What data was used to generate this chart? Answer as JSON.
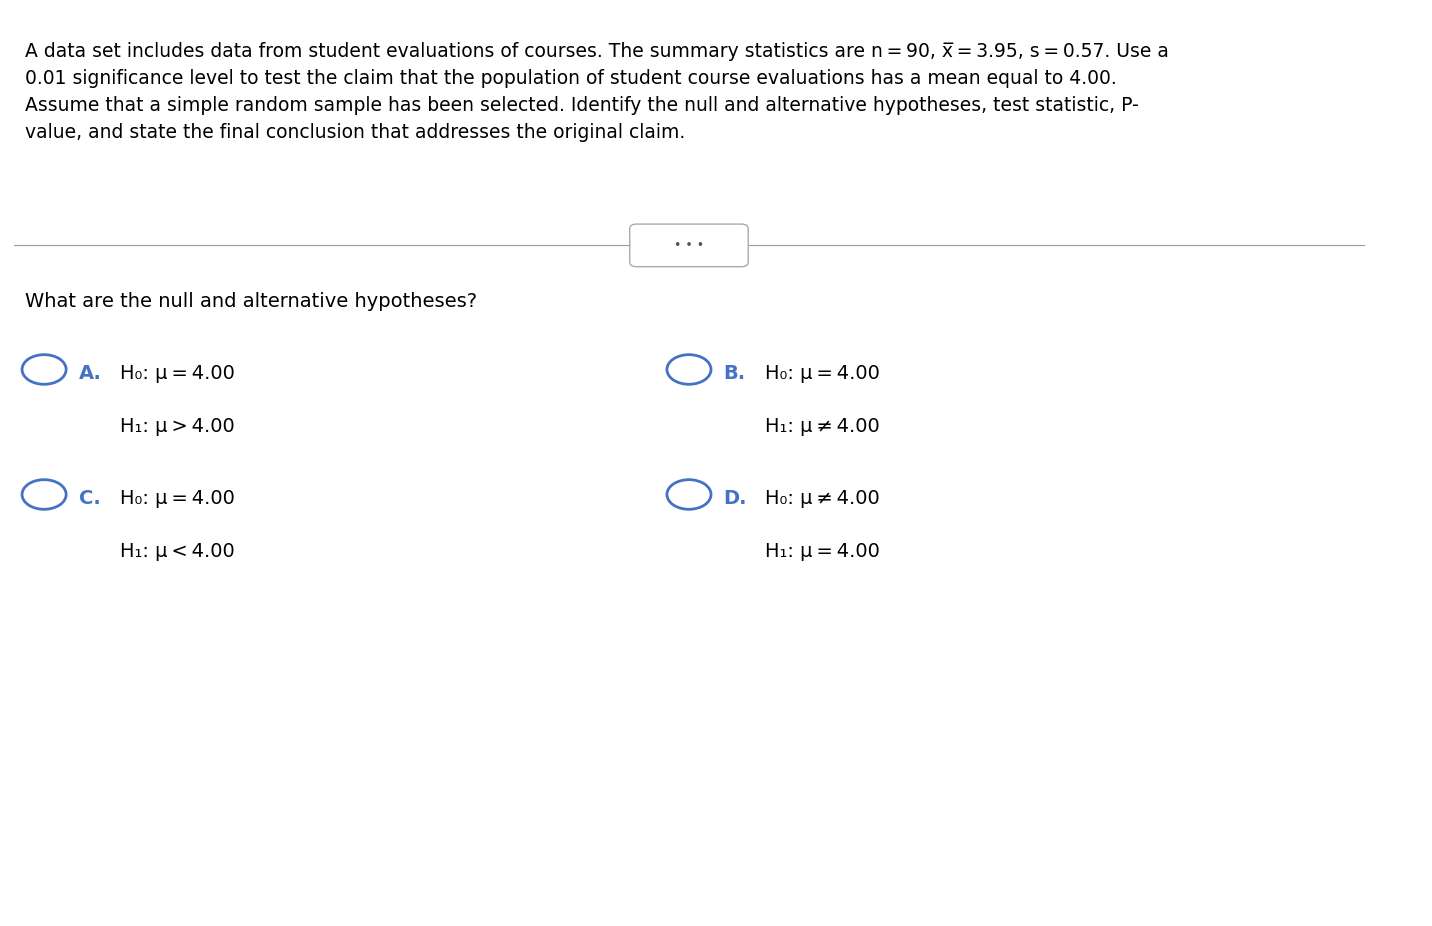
{
  "bg_color": "#ffffff",
  "text_color": "#000000",
  "blue_color": "#4472C4",
  "paragraph_text": "A data set includes data from student evaluations of courses. The summary statistics are n = 90, x̅ = 3.95, s = 0.57. Use a\n0.01 significance level to test the claim that the population of student course evaluations has a mean equal to 4.00.\nAssume that a simple random sample has been selected. Identify the null and alternative hypotheses, test statistic, P-\nvalue, and state the final conclusion that addresses the original claim.",
  "question_text": "What are the null and alternative hypotheses?",
  "option_A_label": "A.",
  "option_A_h0": "H₀: μ = 4.00",
  "option_A_h1": "H₁: μ > 4.00",
  "option_B_label": "B.",
  "option_B_h0": "H₀: μ = 4.00",
  "option_B_h1": "H₁: μ ≠ 4.00",
  "option_C_label": "C.",
  "option_C_h0": "H₀: μ = 4.00",
  "option_C_h1": "H₁: μ < 4.00",
  "option_D_label": "D.",
  "option_D_h0": "H₀: μ ≠ 4.00",
  "option_D_h1": "H₁: μ = 4.00",
  "dots_button_text": "• • •",
  "font_size_paragraph": 13.5,
  "font_size_question": 14,
  "font_size_options": 14,
  "font_size_label": 14
}
